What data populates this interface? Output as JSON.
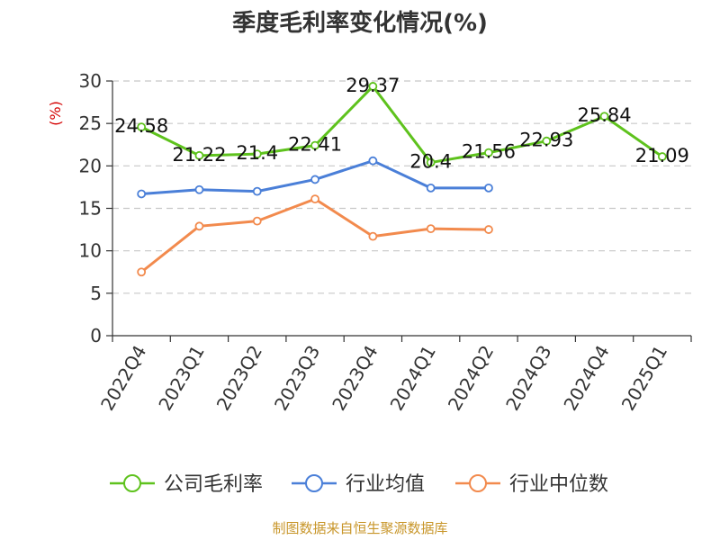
{
  "chart_data": {
    "type": "line",
    "title": "季度毛利率变化情况(%)",
    "ylabel": "(%)",
    "xlabel": "",
    "categories": [
      "2022Q4",
      "2023Q1",
      "2023Q2",
      "2023Q3",
      "2023Q4",
      "2024Q1",
      "2024Q2",
      "2024Q3",
      "2024Q4",
      "2025Q1"
    ],
    "ylim": [
      0,
      30
    ],
    "yticks": [
      0,
      5,
      10,
      15,
      20,
      25,
      30
    ],
    "grid": true,
    "legend_position": "bottom",
    "series": [
      {
        "name": "公司毛利率",
        "color": "#5ec21d",
        "values": [
          24.58,
          21.22,
          21.4,
          22.41,
          29.37,
          20.4,
          21.56,
          22.93,
          25.84,
          21.09
        ],
        "labels": [
          "24.58",
          "21.22",
          "21.4",
          "22.41",
          "29.37",
          "20.4",
          "21.56",
          "22.93",
          "25.84",
          "21.09"
        ]
      },
      {
        "name": "行业均值",
        "color": "#4a7fd8",
        "values": [
          16.7,
          17.2,
          17.0,
          18.4,
          20.6,
          17.4,
          17.4,
          null,
          null,
          null
        ]
      },
      {
        "name": "行业中位数",
        "color": "#f28a4d",
        "values": [
          7.5,
          12.9,
          13.5,
          16.1,
          11.7,
          12.6,
          12.5,
          null,
          null,
          null
        ]
      }
    ]
  },
  "source": "制图数据来自恒生聚源数据库"
}
